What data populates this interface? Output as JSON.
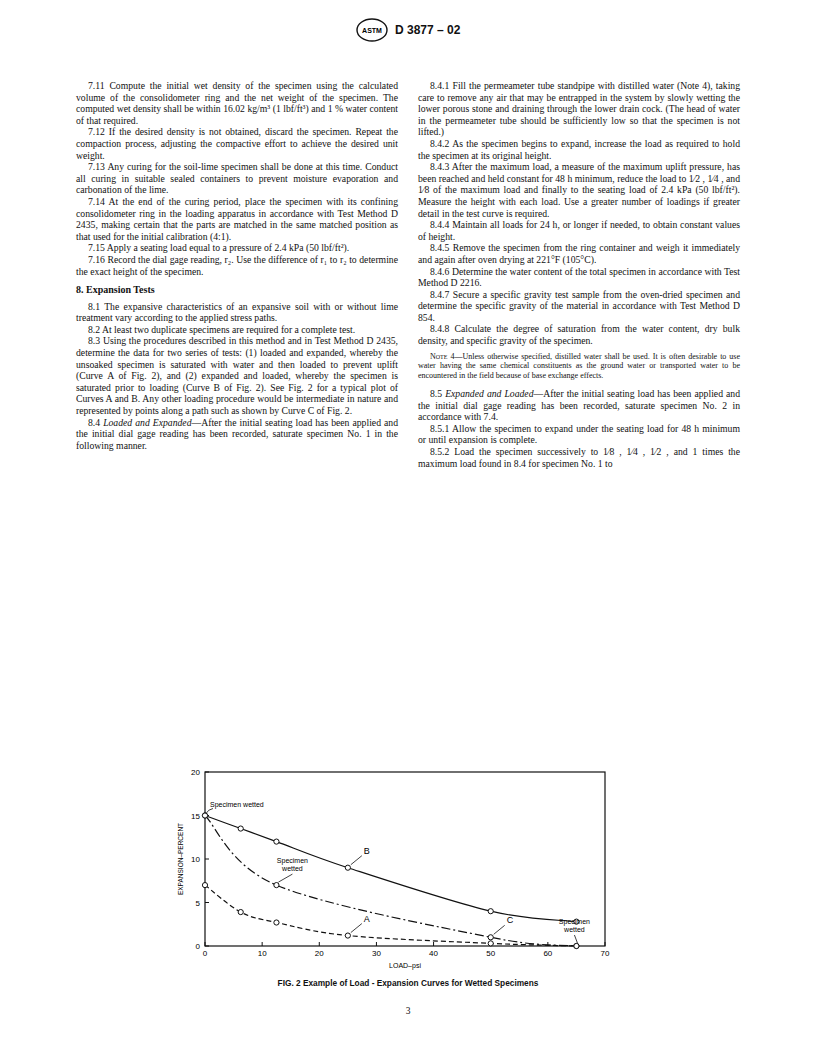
{
  "header": {
    "logo": "ASTM",
    "designation": "D 3877 – 02"
  },
  "left_column": [
    {
      "num": "7.11",
      "text": "Compute the initial wet density of the specimen using the calculated volume of the consolidometer ring and the net weight of the specimen. The computed wet density shall be within 16.02 kg/m³ (1 lbf/ft³) and 1 % water content of that required."
    },
    {
      "num": "7.12",
      "text": "If the desired density is not obtained, discard the specimen. Repeat the compaction process, adjusting the compactive effort to achieve the desired unit weight."
    },
    {
      "num": "7.13",
      "text": "Any curing for the soil-lime specimen shall be done at this time. Conduct all curing in suitable sealed containers to prevent moisture evaporation and carbonation of the lime."
    },
    {
      "num": "7.14",
      "text": "At the end of the curing period, place the specimen with its confining consolidometer ring in the loading apparatus in accordance with Test Method D 2435, making certain that the parts are matched in the same matched position as that used for the initial calibration (4:1)."
    },
    {
      "num": "7.15",
      "text": "Apply a seating load equal to a pressure of 2.4 kPa (50 lbf/ft²)."
    },
    {
      "num": "7.16",
      "text": "Record the dial gage reading, r₂. Use the difference of r₁ to r₂ to determine the exact height of the specimen."
    },
    {
      "num": "8.",
      "heading": "Expansion Tests"
    },
    {
      "num": "8.1",
      "text": "The expansive characteristics of an expansive soil with or without lime treatment vary according to the applied stress paths."
    },
    {
      "num": "8.2",
      "text": "At least two duplicate specimens are required for a complete test."
    },
    {
      "num": "8.3",
      "text": "Using the procedures described in this method and in Test Method D 2435, determine the data for two series of tests: (1) loaded and expanded, whereby the unsoaked specimen is saturated with water and then loaded to prevent uplift (Curve A of Fig. 2), and (2) expanded and loaded, whereby the specimen is saturated prior to loading (Curve B of Fig. 2). See Fig. 2 for a typical plot of Curves A and B. Any other loading procedure would be intermediate in nature and represented by points along a path such as shown by Curve C of Fig. 2."
    },
    {
      "num": "8.4",
      "lead": "Loaded and Expanded",
      "text": "—After the initial seating load has been applied and the initial dial gage reading has been recorded, saturate specimen No. 1 in the following manner."
    }
  ],
  "right_column": [
    {
      "num": "8.4.1",
      "text": "Fill the permeameter tube standpipe with distilled water (Note 4), taking care to remove any air that may be entrapped in the system by slowly wetting the lower porous stone and draining through the lower drain cock. (The head of water in the permeameter tube should be sufficiently low so that the specimen is not lifted.)"
    },
    {
      "num": "8.4.2",
      "text": "As the specimen begins to expand, increase the load as required to hold the specimen at its original height."
    },
    {
      "num": "8.4.3",
      "text": "After the maximum load, a measure of the maximum uplift pressure, has been reached and held constant for 48 h minimum, reduce the load to 1⁄2 , 1⁄4 , and 1⁄8 of the maximum load and finally to the seating load of 2.4 kPa (50 lbf/ft²). Measure the height with each load. Use a greater number of loadings if greater detail in the test curve is required."
    },
    {
      "num": "8.4.4",
      "text": "Maintain all loads for 24 h, or longer if needed, to obtain constant values of height."
    },
    {
      "num": "8.4.5",
      "text": "Remove the specimen from the ring container and weigh it immediately and again after oven drying at 221°F (105°C)."
    },
    {
      "num": "8.4.6",
      "text": "Determine the water content of the total specimen in accordance with Test Method D 2216."
    },
    {
      "num": "8.4.7",
      "text": "Secure a specific gravity test sample from the oven-dried specimen and determine the specific gravity of the material in accordance with Test Method D 854."
    },
    {
      "num": "8.4.8",
      "text": "Calculate the degree of saturation from the water content, dry bulk density, and specific gravity of the specimen."
    },
    {
      "note_label": "Note 4",
      "text": "—Unless otherwise specified, distilled water shall be used. It is often desirable to use water having the same chemical constituents as the ground water or transported water to be encountered in the field because of base exchange effects."
    },
    {
      "num": "8.5",
      "lead": "Expanded and Loaded",
      "text": "—After the initial seating load has been applied and the initial dial gage reading has been recorded, saturate specimen No. 2 in accordance with 7.4."
    },
    {
      "num": "8.5.1",
      "text": "Allow the specimen to expand under the seating load for 48 h minimum or until expansion is complete."
    },
    {
      "num": "8.5.2",
      "text": "Load the specimen successively to 1⁄8 , 1⁄4 , 1⁄2 , and 1 times the maximum load found in 8.4 for specimen No. 1 to"
    }
  ],
  "chart_data": {
    "type": "line",
    "x_label": "LOAD–psi",
    "y_label": "EXPANSION–PERCENT",
    "xlim": [
      0,
      70
    ],
    "xticks": [
      0,
      10,
      20,
      30,
      40,
      50,
      60,
      70
    ],
    "ylim": [
      0,
      20
    ],
    "yticks": [
      0,
      5,
      10,
      15,
      20
    ],
    "grid": false,
    "series": [
      {
        "name": "A",
        "color": "#111111",
        "line_style": "dashed",
        "marker": "circle",
        "x": [
          0,
          6.25,
          12.5,
          25,
          50,
          65
        ],
        "values": [
          7,
          3.9,
          2.7,
          1.2,
          0.3,
          0
        ]
      },
      {
        "name": "B",
        "color": "#111111",
        "line_style": "solid",
        "marker": "circle",
        "x": [
          0,
          6.25,
          12.5,
          25,
          50,
          65
        ],
        "values": [
          15,
          13.5,
          12,
          9,
          4,
          2.8
        ]
      },
      {
        "name": "C",
        "color": "#111111",
        "line_style": "dashdot",
        "marker": "circle",
        "x": [
          0,
          12.5,
          50,
          65
        ],
        "values": [
          15,
          7,
          1,
          0
        ]
      }
    ],
    "annotations": [
      {
        "text": "Specimen wetted",
        "x": 0,
        "y": 15
      },
      {
        "text": "Specimen wetted",
        "x": 12.5,
        "y": 7
      },
      {
        "text": "Specimen wetted",
        "x": 65,
        "y": 0
      }
    ]
  },
  "caption": {
    "label": "FIG. 2",
    "text": "Example of Load - Expansion Curves for Wetted Specimens"
  },
  "page_number": "3"
}
